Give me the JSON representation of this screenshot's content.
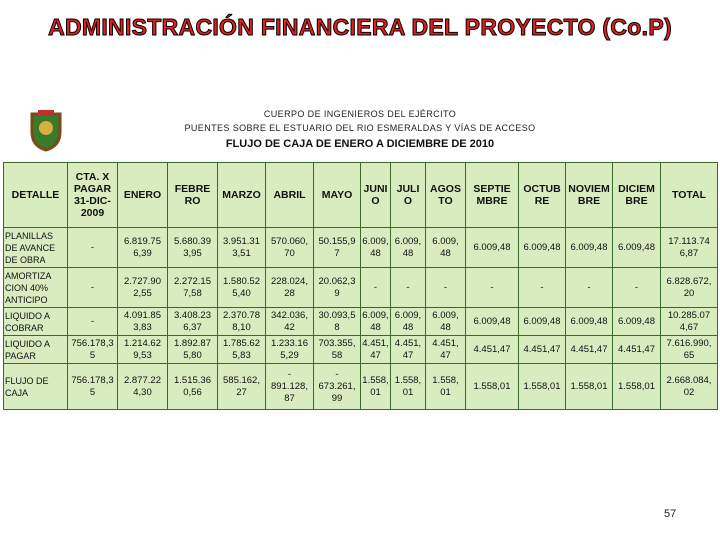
{
  "header": {
    "title": "ADMINISTRACIÓN FINANCIERA DEL PROYECTO (Co.P)",
    "subtitle_lines": [
      "CUERPO DE INGENIEROS DEL EJÉRCITO",
      "PUENTES SOBRE EL ESTUARIO DEL RIO ESMERALDAS Y VÍAS DE ACCESO"
    ],
    "table_title": "FLUJO DE CAJA DE ENERO A DICIEMBRE DE 2010"
  },
  "table": {
    "columns": [
      "DETALLE",
      "CTA. X\nPAGAR\n31-DIC-\n2009",
      "ENERO",
      "FEBRE\nRO",
      "MARZO",
      "ABRIL",
      "MAYO",
      "JUNI\nO",
      "JULI\nO",
      "AGOS\nTO",
      "SEPTIE\nMBRE",
      "OCTUB\nRE",
      "NOVIEM\nBRE",
      "DICIEM\nBRE",
      "TOTAL"
    ],
    "rows": [
      [
        "PLANILLAS\nDE AVANCE\nDE OBRA",
        "-",
        "6.819.75\n6,39",
        "5.680.39\n3,95",
        "3.951.31\n3,51",
        "570.060,\n70",
        "50.155,9\n7",
        "6.009,\n48",
        "6.009,\n48",
        "6.009,\n48",
        "6.009,48",
        "6.009,48",
        "6.009,48",
        "6.009,48",
        "17.113.74\n6,87"
      ],
      [
        "AMORTIZA\nCION 40%\nANTICIPO",
        "-",
        "2.727.90\n2,55",
        "2.272.15\n7,58",
        "1.580.52\n5,40",
        "228.024,\n28",
        "20.062,3\n9",
        "-",
        "-",
        "-",
        "-",
        "-",
        "-",
        "-",
        "6.828.672,\n20"
      ],
      [
        "LIQUIDO A\nCOBRAR",
        "-",
        "4.091.85\n3,83",
        "3.408.23\n6,37",
        "2.370.78\n8,10",
        "342.036,\n42",
        "30.093,5\n8",
        "6.009,\n48",
        "6.009,\n48",
        "6.009,\n48",
        "6.009,48",
        "6.009,48",
        "6.009,48",
        "6.009,48",
        "10.285.07\n4,67"
      ],
      [
        "LIQUIDO A\nPAGAR",
        "756.178,3\n5",
        "1.214.62\n9,53",
        "1.892.87\n5,80",
        "1.785.62\n5,83",
        "1.233.16\n5,29",
        "703.355,\n58",
        "4.451,\n47",
        "4.451,\n47",
        "4.451,\n47",
        "4.451,47",
        "4.451,47",
        "4.451,47",
        "4.451,47",
        "7.616.990,\n65"
      ],
      [
        "FLUJO DE\nCAJA",
        "756.178,3\n5",
        "2.877.22\n4,30",
        "1.515.36\n0,56",
        "585.162,\n27",
        "-\n891.128,\n87",
        "-\n673.261,\n99",
        "1.558,\n01",
        "1.558,\n01",
        "1.558,\n01",
        "1.558,01",
        "1.558,01",
        "1.558,01",
        "1.558,01",
        "2.668.084,\n02"
      ]
    ]
  },
  "page_number": "57"
}
